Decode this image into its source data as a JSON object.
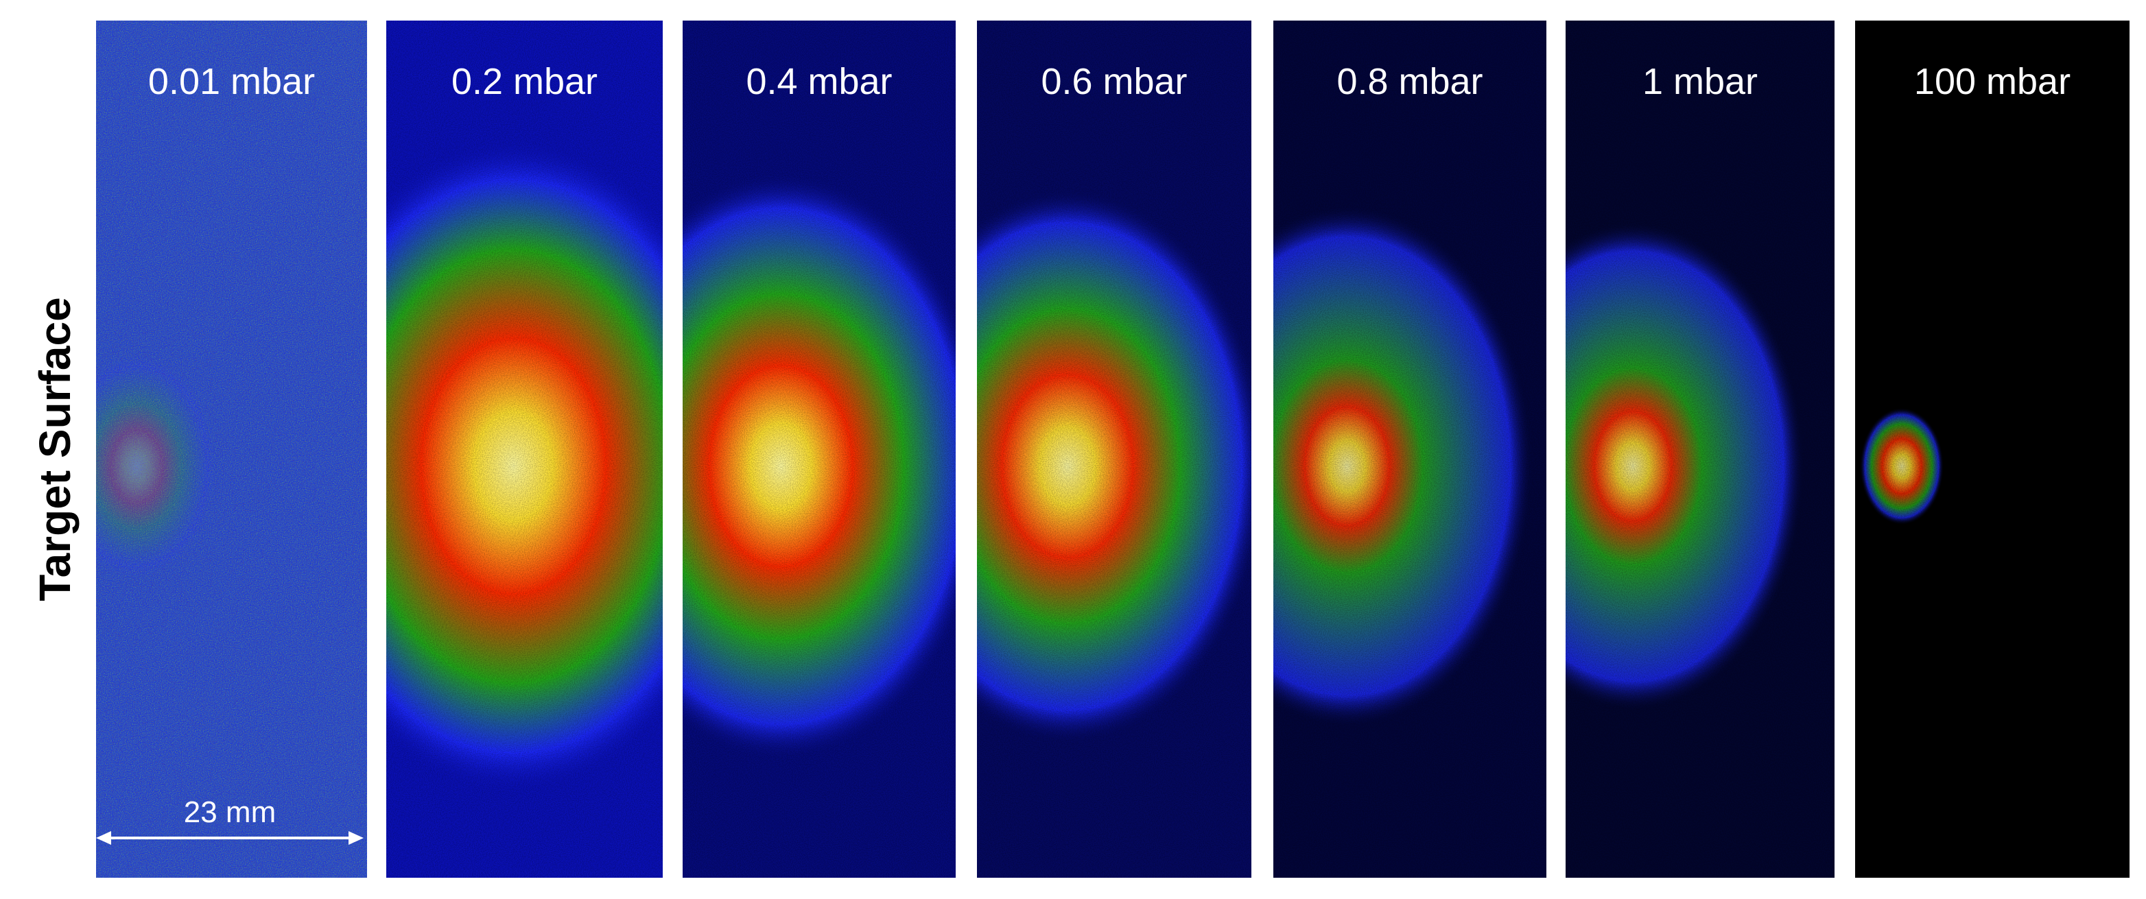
{
  "figure": {
    "y_axis_label": "Target Surface",
    "scale_bar_label": "23 mm",
    "panels": [
      {
        "pressure_label": "0.01 mbar",
        "background_color": "#1c3ad8",
        "plume_intensity": 0.25,
        "plume_extent": 0.35,
        "core_size": 0.08,
        "noise": "high"
      },
      {
        "pressure_label": "0.2 mbar",
        "background_color": "#0a10b8",
        "plume_intensity": 1.0,
        "plume_extent": 1.0,
        "core_size": 0.28,
        "noise": "medium"
      },
      {
        "pressure_label": "0.4 mbar",
        "background_color": "#050a7c",
        "plume_intensity": 0.95,
        "plume_extent": 0.9,
        "core_size": 0.22,
        "noise": "low"
      },
      {
        "pressure_label": "0.6 mbar",
        "background_color": "#040860",
        "plume_intensity": 0.92,
        "plume_extent": 0.85,
        "core_size": 0.2,
        "noise": "low"
      },
      {
        "pressure_label": "0.8 mbar",
        "background_color": "#02053a",
        "plume_intensity": 0.85,
        "plume_extent": 0.8,
        "core_size": 0.13,
        "noise": "low"
      },
      {
        "pressure_label": "1 mbar",
        "background_color": "#02052e",
        "plume_intensity": 0.85,
        "plume_extent": 0.75,
        "core_size": 0.12,
        "noise": "low"
      },
      {
        "pressure_label": "100 mbar",
        "background_color": "#000000",
        "plume_intensity": 0.8,
        "plume_extent": 0.18,
        "core_size": 0.06,
        "noise": "low"
      }
    ]
  }
}
